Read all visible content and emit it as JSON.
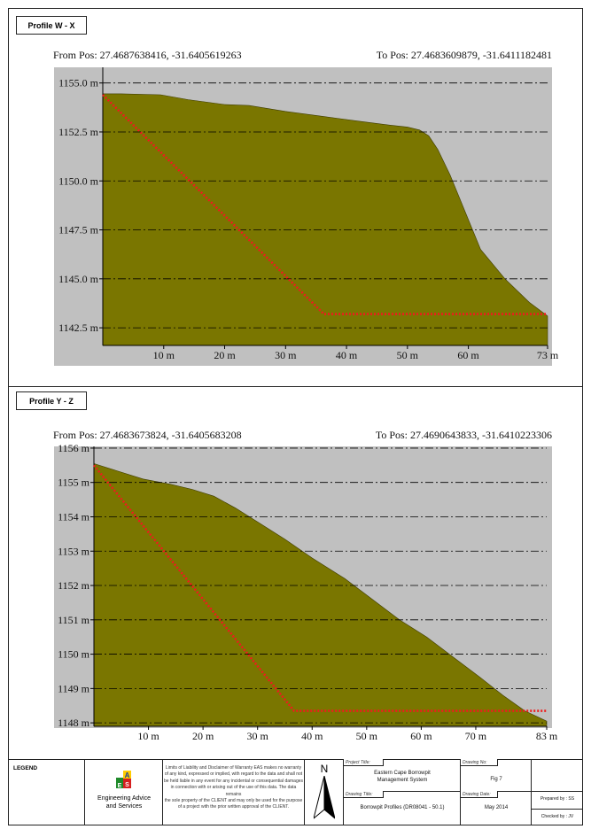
{
  "profiles": [
    {
      "label": "Profile W - X",
      "from": "From Pos: 27.4687638416, -31.6405619263",
      "to": "To Pos: 27.4683609879, -31.6411182481"
    },
    {
      "label": "Profile Y - Z",
      "from": "From Pos: 27.4683673824, -31.6405683208",
      "to": "To Pos: 27.4690643833, -31.6410223306"
    }
  ],
  "colors": {
    "terrain_fill": "#7a7600",
    "plot_bg": "#c0c0c0",
    "cut_line": "#ee1c1c",
    "grid": "#000000"
  },
  "chart_data": [
    {
      "type": "area",
      "x_unit": "m",
      "y_unit": "m",
      "xlim": [
        0,
        73
      ],
      "ylim": [
        1141.6,
        1155.8
      ],
      "x_ticks": [
        10,
        20,
        30,
        40,
        50,
        60,
        73
      ],
      "x_tick_labels": [
        "10 m",
        "20 m",
        "30 m",
        "40 m",
        "50 m",
        "60 m",
        "73 m"
      ],
      "y_ticks": [
        1155.0,
        1152.5,
        1150.0,
        1147.5,
        1145.0,
        1142.5
      ],
      "y_tick_labels": [
        "1155.0 m",
        "1152.5 m",
        "1150.0 m",
        "1147.5 m",
        "1145.0 m",
        "1142.5 m"
      ],
      "grid": "horizontal dash-dot",
      "series": [
        {
          "x": [
            0,
            3,
            9.5,
            14,
            20,
            24,
            30,
            36,
            42,
            47,
            50,
            52,
            53.5,
            55,
            57,
            59.5,
            62,
            66,
            70,
            73
          ],
          "y": [
            1154.45,
            1154.45,
            1154.4,
            1154.15,
            1153.9,
            1153.85,
            1153.55,
            1153.3,
            1153.05,
            1152.85,
            1152.75,
            1152.6,
            1152.3,
            1151.6,
            1150.3,
            1148.4,
            1146.5,
            1145.0,
            1143.8,
            1143.1
          ]
        },
        {
          "x": [
            0,
            36.3,
            73
          ],
          "y": [
            1154.4,
            1143.2,
            1143.2
          ]
        }
      ]
    },
    {
      "type": "area",
      "x_unit": "m",
      "y_unit": "m",
      "xlim": [
        0,
        83
      ],
      "ylim": [
        1147.9,
        1156.05
      ],
      "x_ticks": [
        10,
        20,
        30,
        40,
        50,
        60,
        70,
        83
      ],
      "x_tick_labels": [
        "10 m",
        "20 m",
        "30 m",
        "40 m",
        "50 m",
        "60 m",
        "70 m",
        "83 m"
      ],
      "y_ticks": [
        1156,
        1155,
        1154,
        1153,
        1152,
        1151,
        1150,
        1149,
        1148
      ],
      "y_tick_labels": [
        "1156 m",
        "1155 m",
        "1154 m",
        "1153 m",
        "1152 m",
        "1151 m",
        "1150 m",
        "1149 m",
        "1148 m"
      ],
      "grid": "horizontal dash-dot",
      "series": [
        {
          "x": [
            0,
            4,
            9,
            14,
            18,
            22,
            26,
            30,
            35,
            40,
            46,
            51,
            56,
            61,
            66,
            71,
            75,
            79,
            81,
            83
          ],
          "y": [
            1155.55,
            1155.35,
            1155.1,
            1154.95,
            1154.8,
            1154.6,
            1154.25,
            1153.85,
            1153.35,
            1152.8,
            1152.2,
            1151.6,
            1151.0,
            1150.5,
            1149.9,
            1149.3,
            1148.8,
            1148.35,
            1148.2,
            1148.05
          ]
        },
        {
          "x": [
            0,
            36.7,
            83
          ],
          "y": [
            1155.5,
            1148.35,
            1148.35
          ]
        }
      ]
    }
  ],
  "legend": {
    "title": "LEGEND",
    "company_name_line1": "Engineering Advice",
    "company_name_line2": "and Services",
    "disclaimer": [
      "Limits of Liability and Disclaimer of Warranty EAS makes no warranty",
      "of any kind, expressed or implied, with regard to the data and shall not",
      "be held liable in any event for any incidental or consequential damages",
      "in connection with or arising out of the use of this data. The data remains",
      "the sole property of the CLIENT and may only be used for the purpose",
      "of a project with the prior written approval of the CLIENT."
    ],
    "north": "N",
    "project_title_label": "Project Title:",
    "project_title_line1": "Eastern Cape Borrowpit",
    "project_title_line2": "Management System",
    "drawing_title_label": "Drawing Title:",
    "drawing_title": "Borrowpit Profiles (DR08041 - 50.1)",
    "drawing_no_label": "Drawing No:",
    "drawing_no": "Fig 7",
    "drawing_date_label": "Drawing Date:",
    "drawing_date": "May 2014",
    "prepared_by": "Prepared by : SS",
    "checked_by": "Checked by : JV"
  }
}
